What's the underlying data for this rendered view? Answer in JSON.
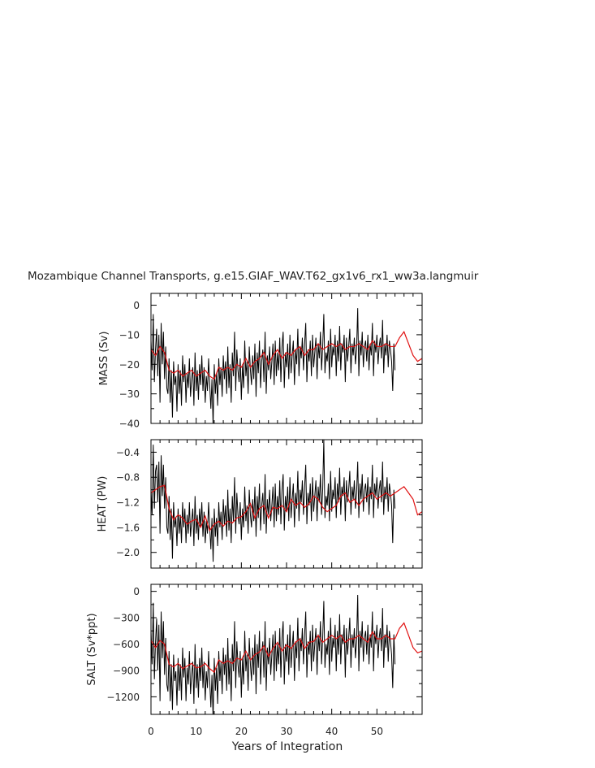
{
  "chart_data": {
    "title": "Mozambique Channel Transports, g.e15.GIAF_WAV.T62_gx1v6_rx1_ww3a.langmuir",
    "xlabel": "Years of Integration",
    "xlim": [
      0,
      60
    ],
    "xticks": [
      0,
      10,
      20,
      30,
      40,
      50
    ],
    "colors": {
      "raw": "#000000",
      "smoothed": "#e01010"
    },
    "panels": [
      {
        "type": "line",
        "ylabel": "MASS (Sv)",
        "ylim": [
          -40,
          4
        ],
        "yticks": [
          0,
          -10,
          -20,
          -30,
          -40
        ],
        "yticklabels": [
          "0",
          "−10",
          "−20",
          "−30",
          "−40"
        ],
        "smoothed": {
          "x": [
            0,
            1,
            2,
            3,
            4,
            5,
            6,
            7,
            8,
            9,
            10,
            11,
            12,
            13,
            14,
            15,
            16,
            17,
            18,
            19,
            20,
            21,
            22,
            23,
            24,
            25,
            26,
            27,
            28,
            29,
            30,
            31,
            32,
            33,
            34,
            35,
            36,
            37,
            38,
            39,
            40,
            41,
            42,
            43,
            44,
            45,
            46,
            47,
            48,
            49,
            50,
            51,
            52,
            53,
            54,
            55,
            56,
            57,
            58,
            59,
            60
          ],
          "y": [
            -15,
            -17,
            -14,
            -16,
            -22,
            -23,
            -22,
            -24,
            -23,
            -22,
            -24,
            -23,
            -22,
            -24,
            -25,
            -21,
            -22,
            -21,
            -22,
            -20,
            -21,
            -18,
            -21,
            -19,
            -18,
            -16,
            -20,
            -17,
            -15,
            -18,
            -16,
            -17,
            -15,
            -14,
            -17,
            -15,
            -15,
            -13,
            -15,
            -14,
            -13,
            -14,
            -13,
            -15,
            -14,
            -14,
            -13,
            -14,
            -15,
            -12,
            -14,
            -14,
            -13,
            -14,
            -14,
            -11,
            -9,
            -13,
            -17,
            -19,
            -18
          ]
        },
        "raw": {
          "x_start": 0,
          "x_step": 0.25,
          "y": [
            -12,
            -22,
            -3,
            -26,
            -15,
            -8,
            -24,
            -10,
            -33,
            -6,
            -20,
            -9,
            -25,
            -14,
            -28,
            -30,
            -18,
            -33,
            -22,
            -38,
            -19,
            -27,
            -24,
            -36,
            -20,
            -30,
            -22,
            -34,
            -17,
            -26,
            -20,
            -33,
            -23,
            -28,
            -18,
            -31,
            -25,
            -21,
            -34,
            -16,
            -29,
            -22,
            -32,
            -20,
            -27,
            -17,
            -29,
            -21,
            -33,
            -24,
            -29,
            -18,
            -27,
            -35,
            -25,
            -41,
            -20,
            -30,
            -23,
            -34,
            -18,
            -27,
            -21,
            -31,
            -17,
            -25,
            -19,
            -30,
            -14,
            -28,
            -20,
            -33,
            -16,
            -24,
            -9,
            -29,
            -15,
            -22,
            -26,
            -18,
            -32,
            -20,
            -28,
            -12,
            -24,
            -19,
            -30,
            -14,
            -22,
            -27,
            -17,
            -25,
            -13,
            -31,
            -16,
            -23,
            -12,
            -28,
            -19,
            -15,
            -26,
            -9,
            -30,
            -17,
            -22,
            -14,
            -25,
            -19,
            -13,
            -27,
            -12,
            -24,
            -16,
            -22,
            -11,
            -26,
            -14,
            -9,
            -28,
            -16,
            -21,
            -13,
            -25,
            -10,
            -23,
            -17,
            -12,
            -27,
            -15,
            -20,
            -8,
            -24,
            -14,
            -18,
            -11,
            -22,
            -13,
            -6,
            -26,
            -15,
            -19,
            -12,
            -24,
            -10,
            -21,
            -16,
            -11,
            -25,
            -13,
            -18,
            -9,
            -22,
            -14,
            -3,
            -23,
            -16,
            -19,
            -12,
            -25,
            -8,
            -21,
            -14,
            -17,
            -10,
            -24,
            -12,
            -19,
            -7,
            -22,
            -13,
            -16,
            -10,
            -26,
            -11,
            -19,
            -14,
            -8,
            -23,
            -13,
            -17,
            -11,
            -20,
            -15,
            -1,
            -24,
            -12,
            -17,
            -9,
            -21,
            -14,
            -12,
            -19,
            -10,
            -22,
            -13,
            -17,
            -6,
            -24,
            -12,
            -16,
            -10,
            -20,
            -14,
            -11,
            -18,
            -5,
            -23,
            -13,
            -17,
            -10,
            -21,
            -12,
            -15,
            -19,
            -29,
            -13,
            -22
          ]
        }
      },
      {
        "type": "line",
        "ylabel": "HEAT (PW)",
        "ylim": [
          -2.25,
          -0.2
        ],
        "yticks": [
          -0.4,
          -0.8,
          -1.2,
          -1.6,
          -2.0
        ],
        "yticklabels": [
          "−0.4",
          "−0.8",
          "−1.2",
          "−1.6",
          "−2.0"
        ],
        "smoothed": {
          "x": [
            0,
            1,
            2,
            3,
            4,
            5,
            6,
            7,
            8,
            9,
            10,
            11,
            12,
            13,
            14,
            15,
            16,
            17,
            18,
            19,
            20,
            21,
            22,
            23,
            24,
            25,
            26,
            27,
            28,
            29,
            30,
            31,
            32,
            33,
            34,
            35,
            36,
            37,
            38,
            39,
            40,
            41,
            42,
            43,
            44,
            45,
            46,
            47,
            48,
            49,
            50,
            51,
            52,
            53,
            54,
            55,
            56,
            57,
            58,
            59,
            60
          ],
          "y": [
            -1.05,
            -1.0,
            -0.95,
            -0.93,
            -1.3,
            -1.48,
            -1.4,
            -1.45,
            -1.55,
            -1.5,
            -1.47,
            -1.6,
            -1.42,
            -1.65,
            -1.55,
            -1.5,
            -1.58,
            -1.5,
            -1.53,
            -1.45,
            -1.43,
            -1.35,
            -1.22,
            -1.45,
            -1.3,
            -1.25,
            -1.45,
            -1.28,
            -1.3,
            -1.25,
            -1.35,
            -1.15,
            -1.25,
            -1.2,
            -1.28,
            -1.22,
            -1.1,
            -1.15,
            -1.28,
            -1.35,
            -1.3,
            -1.25,
            -1.1,
            -1.05,
            -1.2,
            -1.15,
            -1.25,
            -1.15,
            -1.1,
            -1.05,
            -1.15,
            -1.1,
            -1.05,
            -1.1,
            -1.05,
            -1.0,
            -0.95,
            -1.05,
            -1.15,
            -1.4,
            -1.35
          ]
        },
        "raw": {
          "x_start": 0,
          "x_step": 0.25,
          "y": [
            -1.0,
            -1.4,
            -0.28,
            -1.3,
            -0.7,
            -0.6,
            -1.2,
            -0.55,
            -1.7,
            -0.45,
            -1.1,
            -0.6,
            -1.3,
            -0.8,
            -1.6,
            -1.7,
            -1.1,
            -1.8,
            -1.3,
            -2.1,
            -1.2,
            -1.6,
            -1.45,
            -1.9,
            -1.3,
            -1.7,
            -1.4,
            -1.85,
            -1.2,
            -1.6,
            -1.3,
            -1.85,
            -1.4,
            -1.7,
            -1.2,
            -1.75,
            -1.5,
            -1.3,
            -1.9,
            -1.1,
            -1.7,
            -1.4,
            -1.8,
            -1.3,
            -1.6,
            -1.2,
            -1.75,
            -1.35,
            -1.85,
            -1.5,
            -1.7,
            -1.2,
            -1.6,
            -1.95,
            -1.45,
            -2.15,
            -1.3,
            -1.75,
            -1.45,
            -1.9,
            -1.2,
            -1.6,
            -1.35,
            -1.8,
            -1.15,
            -1.55,
            -1.25,
            -1.75,
            -1.0,
            -1.65,
            -1.3,
            -1.85,
            -1.1,
            -1.5,
            -0.8,
            -1.7,
            -1.05,
            -1.4,
            -1.55,
            -1.2,
            -1.8,
            -1.3,
            -1.6,
            -0.95,
            -1.5,
            -1.25,
            -1.7,
            -1.0,
            -1.4,
            -1.6,
            -1.15,
            -1.5,
            -0.95,
            -1.75,
            -1.1,
            -1.45,
            -0.9,
            -1.65,
            -1.25,
            -1.05,
            -1.55,
            -0.75,
            -1.7,
            -1.15,
            -1.4,
            -1.0,
            -1.5,
            -1.25,
            -0.95,
            -1.6,
            -0.9,
            -1.5,
            -1.1,
            -1.4,
            -0.85,
            -1.55,
            -1.0,
            -0.75,
            -1.65,
            -1.1,
            -1.35,
            -0.95,
            -1.5,
            -0.8,
            -1.45,
            -1.15,
            -0.9,
            -1.6,
            -1.05,
            -1.3,
            -0.7,
            -1.5,
            -1.0,
            -1.2,
            -0.85,
            -1.4,
            -0.95,
            -0.6,
            -1.55,
            -1.05,
            -1.25,
            -0.9,
            -1.5,
            -0.8,
            -1.35,
            -1.1,
            -0.85,
            -1.5,
            -0.95,
            -1.2,
            -0.75,
            -1.4,
            -1.0,
            -0.2,
            -1.45,
            -1.1,
            -1.25,
            -0.9,
            -1.5,
            -0.7,
            -1.35,
            -1.0,
            -1.15,
            -0.8,
            -1.45,
            -0.9,
            -1.2,
            -0.65,
            -1.4,
            -0.95,
            -1.1,
            -0.8,
            -1.5,
            -0.85,
            -1.2,
            -1.0,
            -0.7,
            -1.4,
            -0.95,
            -1.15,
            -0.85,
            -1.3,
            -1.05,
            -0.55,
            -1.45,
            -0.9,
            -1.15,
            -0.75,
            -1.35,
            -1.0,
            -0.9,
            -1.2,
            -0.8,
            -1.4,
            -0.95,
            -1.15,
            -0.6,
            -1.45,
            -0.9,
            -1.1,
            -0.8,
            -1.3,
            -1.0,
            -0.85,
            -1.2,
            -0.55,
            -1.4,
            -0.95,
            -1.15,
            -0.8,
            -1.35,
            -0.9,
            -1.05,
            -1.25,
            -1.85,
            -1.0,
            -1.3
          ]
        }
      },
      {
        "type": "line",
        "ylabel": "SALT (Sv*ppt)",
        "ylim": [
          -1400,
          80
        ],
        "yticks": [
          0,
          -300,
          -600,
          -900,
          -1200
        ],
        "yticklabels": [
          "0",
          "−300",
          "−600",
          "−900",
          "−1200"
        ],
        "smoothed": {
          "x": [
            0,
            1,
            2,
            3,
            4,
            5,
            6,
            7,
            8,
            9,
            10,
            11,
            12,
            13,
            14,
            15,
            16,
            17,
            18,
            19,
            20,
            21,
            22,
            23,
            24,
            25,
            26,
            27,
            28,
            29,
            30,
            31,
            32,
            33,
            34,
            35,
            36,
            37,
            38,
            39,
            40,
            41,
            42,
            43,
            44,
            45,
            46,
            47,
            48,
            49,
            50,
            51,
            52,
            53,
            54,
            55,
            56,
            57,
            58,
            59,
            60
          ],
          "y": [
            -560,
            -640,
            -560,
            -600,
            -830,
            -860,
            -820,
            -880,
            -850,
            -820,
            -870,
            -860,
            -820,
            -880,
            -920,
            -780,
            -820,
            -790,
            -820,
            -760,
            -780,
            -680,
            -780,
            -720,
            -690,
            -620,
            -740,
            -650,
            -580,
            -680,
            -610,
            -650,
            -580,
            -540,
            -650,
            -580,
            -570,
            -500,
            -580,
            -540,
            -500,
            -540,
            -500,
            -580,
            -540,
            -540,
            -500,
            -540,
            -580,
            -460,
            -540,
            -540,
            -500,
            -540,
            -540,
            -420,
            -360,
            -500,
            -640,
            -700,
            -680
          ]
        },
        "raw": {
          "x_start": 0,
          "x_step": 0.25,
          "y": [
            -450,
            -830,
            -130,
            -1000,
            -580,
            -310,
            -900,
            -380,
            -1250,
            -230,
            -760,
            -340,
            -950,
            -530,
            -1060,
            -1140,
            -680,
            -1250,
            -830,
            -1350,
            -720,
            -1020,
            -910,
            -1300,
            -760,
            -1130,
            -830,
            -1240,
            -640,
            -980,
            -760,
            -1250,
            -870,
            -1060,
            -680,
            -1170,
            -950,
            -800,
            -1280,
            -600,
            -1100,
            -830,
            -1210,
            -760,
            -1020,
            -640,
            -1100,
            -800,
            -1240,
            -910,
            -1100,
            -680,
            -1020,
            -1320,
            -950,
            -1460,
            -760,
            -1130,
            -870,
            -1280,
            -680,
            -1020,
            -800,
            -1170,
            -640,
            -950,
            -720,
            -1130,
            -530,
            -1060,
            -760,
            -1250,
            -600,
            -910,
            -340,
            -1100,
            -570,
            -830,
            -980,
            -680,
            -1210,
            -760,
            -1060,
            -450,
            -910,
            -720,
            -1130,
            -530,
            -830,
            -1020,
            -640,
            -950,
            -490,
            -1170,
            -600,
            -870,
            -450,
            -1060,
            -720,
            -570,
            -980,
            -340,
            -1130,
            -640,
            -830,
            -530,
            -950,
            -720,
            -490,
            -1020,
            -450,
            -910,
            -600,
            -830,
            -420,
            -980,
            -530,
            -340,
            -1060,
            -600,
            -800,
            -490,
            -950,
            -380,
            -870,
            -640,
            -450,
            -1020,
            -570,
            -760,
            -300,
            -910,
            -530,
            -680,
            -420,
            -830,
            -490,
            -230,
            -980,
            -570,
            -720,
            -450,
            -910,
            -380,
            -800,
            -600,
            -420,
            -950,
            -490,
            -680,
            -340,
            -830,
            -530,
            -110,
            -870,
            -600,
            -720,
            -450,
            -950,
            -300,
            -800,
            -530,
            -640,
            -380,
            -910,
            -450,
            -720,
            -260,
            -830,
            -490,
            -600,
            -380,
            -980,
            -420,
            -720,
            -530,
            -300,
            -870,
            -490,
            -640,
            -420,
            -760,
            -570,
            -40,
            -910,
            -450,
            -640,
            -340,
            -800,
            -530,
            -450,
            -720,
            -380,
            -830,
            -490,
            -640,
            -230,
            -910,
            -450,
            -600,
            -380,
            -760,
            -530,
            -420,
            -680,
            -190,
            -870,
            -490,
            -640,
            -380,
            -800,
            -450,
            -570,
            -720,
            -1100,
            -490,
            -830
          ]
        }
      }
    ]
  }
}
